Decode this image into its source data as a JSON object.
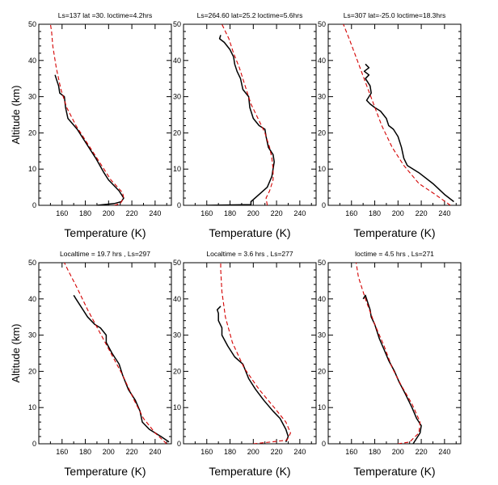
{
  "figure": {
    "xlabel": "Temperature (K)",
    "ylabel": "Altitude (km)",
    "line_colors": {
      "observed": "#000000",
      "model": "#d40000"
    }
  },
  "chart_data": [
    {
      "type": "line",
      "title": "Ls=137   lat =30. loctime=4.2hrs",
      "xlabel": "Temperature (K)",
      "ylabel": "Altitude (km)",
      "xlim": [
        140,
        254
      ],
      "ylim": [
        0,
        50
      ],
      "xticks": [
        160,
        180,
        200,
        220,
        240
      ],
      "yticks": [
        0,
        10,
        20,
        30,
        40,
        50
      ],
      "series": [
        {
          "style": "solid-black",
          "points": [
            [
              190,
              0
            ],
            [
              205,
              0.5
            ],
            [
              211,
              1
            ],
            [
              213,
              2
            ],
            [
              209,
              4
            ],
            [
              200,
              7
            ],
            [
              196,
              9
            ],
            [
              189,
              13
            ],
            [
              179,
              18
            ],
            [
              173,
              21
            ],
            [
              165,
              24
            ],
            [
              163,
              27
            ],
            [
              162,
              30
            ],
            [
              158,
              31
            ],
            [
              157,
              33
            ],
            [
              156,
              34
            ],
            [
              154,
              36
            ]
          ]
        },
        {
          "style": "dashed-red",
          "points": [
            [
              205,
              0
            ],
            [
              210,
              0.5
            ],
            [
              213,
              2
            ],
            [
              212,
              3.5
            ],
            [
              202,
              7
            ],
            [
              192,
              12
            ],
            [
              182,
              17
            ],
            [
              172,
              22
            ],
            [
              164,
              27
            ],
            [
              159,
              32
            ],
            [
              155,
              38
            ],
            [
              152,
              44
            ],
            [
              151,
              48
            ],
            [
              150,
              50
            ]
          ]
        }
      ]
    },
    {
      "type": "line",
      "title": "Ls=264.60 lat=25.2 loctime=5.6hrs",
      "xlabel": "Temperature (K)",
      "ylabel": "Altitude (km)",
      "xlim": [
        140,
        254
      ],
      "ylim": [
        0,
        50
      ],
      "xticks": [
        160,
        180,
        200,
        220,
        240
      ],
      "yticks": [
        0,
        10,
        20,
        30,
        40,
        50
      ],
      "series": [
        {
          "style": "solid-black",
          "points": [
            [
              160,
              0
            ],
            [
              198,
              0.2
            ],
            [
              198,
              1
            ],
            [
              205,
              3
            ],
            [
              212,
              5
            ],
            [
              216,
              8
            ],
            [
              218,
              12
            ],
            [
              217,
              14
            ],
            [
              213,
              16
            ],
            [
              211,
              19
            ],
            [
              210,
              21
            ],
            [
              205,
              22
            ],
            [
              200,
              24
            ],
            [
              197,
              27
            ],
            [
              196,
              30
            ],
            [
              191,
              32
            ],
            [
              189,
              35
            ],
            [
              186,
              37
            ],
            [
              184,
              39
            ],
            [
              183,
              41
            ],
            [
              180,
              43
            ],
            [
              175,
              45
            ],
            [
              171,
              46
            ],
            [
              172,
              47
            ]
          ]
        },
        {
          "style": "dashed-red",
          "points": [
            [
              212,
              0
            ],
            [
              211,
              2
            ],
            [
              214,
              4
            ],
            [
              217,
              7
            ],
            [
              217,
              10
            ],
            [
              216,
              13
            ],
            [
              214,
              16
            ],
            [
              210,
              20
            ],
            [
              204,
              24
            ],
            [
              198,
              28
            ],
            [
              193,
              33
            ],
            [
              188,
              38
            ],
            [
              183,
              42
            ],
            [
              179,
              46
            ],
            [
              173,
              50
            ]
          ]
        }
      ]
    },
    {
      "type": "line",
      "title": "Ls=307  lat=-25.0 loctime=18.3hrs",
      "xlabel": "Temperature (K)",
      "ylabel": "Altitude (km)",
      "xlim": [
        140,
        254
      ],
      "ylim": [
        0,
        50
      ],
      "xticks": [
        160,
        180,
        200,
        220,
        240
      ],
      "yticks": [
        0,
        10,
        20,
        30,
        40,
        50
      ],
      "series": [
        {
          "style": "solid-black",
          "points": [
            [
              248,
              1
            ],
            [
              240,
              3
            ],
            [
              230,
              6
            ],
            [
              218,
              9
            ],
            [
              208,
              11
            ],
            [
              205,
              13
            ],
            [
              203,
              16
            ],
            [
              200,
              19
            ],
            [
              196,
              21
            ],
            [
              192,
              22
            ],
            [
              190,
              24
            ],
            [
              185,
              26
            ],
            [
              180,
              27
            ],
            [
              176,
              28
            ],
            [
              173,
              29
            ],
            [
              177,
              31
            ],
            [
              176,
              33
            ],
            [
              172,
              35
            ],
            [
              175,
              36
            ],
            [
              171,
              37
            ],
            [
              175,
              38
            ],
            [
              172,
              39
            ]
          ]
        },
        {
          "style": "dashed-red",
          "points": [
            [
              245,
              0
            ],
            [
              232,
              3
            ],
            [
              218,
              6
            ],
            [
              205,
              11
            ],
            [
              195,
              16
            ],
            [
              186,
              22
            ],
            [
              179,
              28
            ],
            [
              172,
              34
            ],
            [
              165,
              40
            ],
            [
              158,
              46
            ],
            [
              153,
              50
            ]
          ]
        }
      ]
    },
    {
      "type": "line",
      "title": "Localtime = 19.7 hrs , Ls=297",
      "xlabel": "Temperature (K)",
      "ylabel": "Altitude (km)",
      "xlim": [
        140,
        254
      ],
      "ylim": [
        0,
        50
      ],
      "xticks": [
        160,
        180,
        200,
        220,
        240
      ],
      "yticks": [
        0,
        10,
        20,
        30,
        40,
        50
      ],
      "series": [
        {
          "style": "solid-black",
          "points": [
            [
              252,
              0.5
            ],
            [
              245,
              2
            ],
            [
              235,
              4
            ],
            [
              229,
              6
            ],
            [
              227,
              9
            ],
            [
              223,
              12
            ],
            [
              217,
              15
            ],
            [
              212,
              19
            ],
            [
              209,
              22
            ],
            [
              203,
              25
            ],
            [
              198,
              28
            ],
            [
              198,
              30
            ],
            [
              193,
              32
            ],
            [
              188,
              33
            ],
            [
              182,
              35
            ],
            [
              176,
              38
            ],
            [
              172,
              40
            ],
            [
              170,
              41
            ]
          ]
        },
        {
          "style": "dashed-red",
          "points": [
            [
              250,
              0
            ],
            [
              240,
              3
            ],
            [
              230,
              7
            ],
            [
              222,
              12
            ],
            [
              212,
              19
            ],
            [
              202,
              25
            ],
            [
              192,
              31
            ],
            [
              182,
              37
            ],
            [
              173,
              43
            ],
            [
              165,
              48
            ],
            [
              162,
              50
            ]
          ]
        }
      ]
    },
    {
      "type": "line",
      "title": "Localtime = 3.6 hrs , Ls=277",
      "xlabel": "Temperature (K)",
      "ylabel": "Altitude (km)",
      "xlim": [
        140,
        254
      ],
      "ylim": [
        0,
        50
      ],
      "xticks": [
        160,
        180,
        200,
        220,
        240
      ],
      "yticks": [
        0,
        10,
        20,
        30,
        40,
        50
      ],
      "series": [
        {
          "style": "solid-black",
          "points": [
            [
              228,
              0.5
            ],
            [
              230,
              2
            ],
            [
              228,
              4
            ],
            [
              223,
              7
            ],
            [
              217,
              9
            ],
            [
              209,
              12
            ],
            [
              202,
              15
            ],
            [
              196,
              18
            ],
            [
              191,
              22
            ],
            [
              184,
              24
            ],
            [
              178,
              27
            ],
            [
              173,
              30
            ],
            [
              173,
              32
            ],
            [
              170,
              34
            ],
            [
              170,
              36
            ],
            [
              169,
              37
            ],
            [
              172,
              38
            ]
          ]
        },
        {
          "style": "dashed-red",
          "points": [
            [
              200,
              0
            ],
            [
              215,
              0.5
            ],
            [
              229,
              1
            ],
            [
              232,
              3
            ],
            [
              228,
              6
            ],
            [
              218,
              10
            ],
            [
              205,
              15
            ],
            [
              192,
              21
            ],
            [
              182,
              28
            ],
            [
              176,
              35
            ],
            [
              173,
              42
            ],
            [
              172,
              48
            ],
            [
              172,
              50
            ]
          ]
        }
      ]
    },
    {
      "type": "line",
      "title": "loctime = 4.5 hrs , Ls=271",
      "xlabel": "Temperature (K)",
      "ylabel": "Altitude (km)",
      "xlim": [
        140,
        254
      ],
      "ylim": [
        0,
        50
      ],
      "xticks": [
        160,
        180,
        200,
        220,
        240
      ],
      "yticks": [
        0,
        10,
        20,
        30,
        40,
        50
      ],
      "series": [
        {
          "style": "solid-black",
          "points": [
            [
              213,
              0
            ],
            [
              215,
              1
            ],
            [
              219,
              3
            ],
            [
              220,
              5
            ],
            [
              216,
              7
            ],
            [
              212,
              10
            ],
            [
              206,
              14
            ],
            [
              201,
              17
            ],
            [
              197,
              20
            ],
            [
              192,
              23
            ],
            [
              188,
              26
            ],
            [
              184,
              29
            ],
            [
              180,
              33
            ],
            [
              177,
              35
            ],
            [
              176,
              37
            ],
            [
              174,
              39
            ],
            [
              172,
              41
            ],
            [
              170,
              40
            ]
          ]
        },
        {
          "style": "dashed-red",
          "points": [
            [
              200,
              0
            ],
            [
              210,
              0.5
            ],
            [
              218,
              3
            ],
            [
              219,
              6
            ],
            [
              212,
              11
            ],
            [
              203,
              16
            ],
            [
              195,
              21
            ],
            [
              188,
              27
            ],
            [
              180,
              33
            ],
            [
              172,
              40
            ],
            [
              166,
              46
            ],
            [
              164,
              50
            ]
          ]
        }
      ]
    }
  ]
}
